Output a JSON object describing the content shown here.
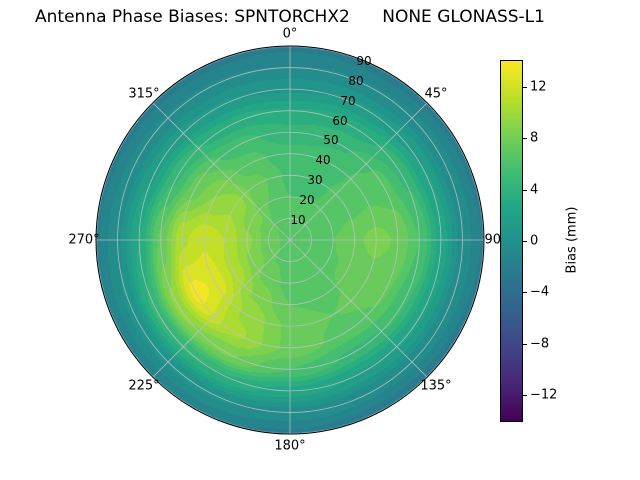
{
  "title": "Antenna Phase Biases: SPNTORCHX2      NONE GLONASS-L1",
  "polar": {
    "azimuth_labels": [
      "0°",
      "45°",
      "90°",
      "135°",
      "180°",
      "225°",
      "270°",
      "315°"
    ],
    "radial_labels": [
      "10",
      "20",
      "30",
      "40",
      "50",
      "60",
      "70",
      "80",
      "90"
    ]
  },
  "colorbar": {
    "label": "Bias (mm)",
    "tick_labels": [
      "12",
      "8",
      "4",
      "0",
      "−4",
      "−8",
      "−12"
    ]
  },
  "chart_data": {
    "type": "heatmap",
    "projection": "polar",
    "title": "Antenna Phase Biases: SPNTORCHX2      NONE GLONASS-L1",
    "colorbar_label": "Bias (mm)",
    "colorbar_ticks": [
      12,
      8,
      4,
      0,
      -4,
      -8,
      -12
    ],
    "colormap": "viridis",
    "colormap_stops": [
      {
        "t": 0.0,
        "c": "#440154"
      },
      {
        "t": 0.1,
        "c": "#482475"
      },
      {
        "t": 0.2,
        "c": "#414487"
      },
      {
        "t": 0.3,
        "c": "#355f8d"
      },
      {
        "t": 0.4,
        "c": "#2a788e"
      },
      {
        "t": 0.5,
        "c": "#21918c"
      },
      {
        "t": 0.6,
        "c": "#22a884"
      },
      {
        "t": 0.7,
        "c": "#44bf70"
      },
      {
        "t": 0.8,
        "c": "#7ad151"
      },
      {
        "t": 0.9,
        "c": "#bddf26"
      },
      {
        "t": 1.0,
        "c": "#fde725"
      }
    ],
    "vmin": -14,
    "vmax": 14,
    "grid": true,
    "azimuth_tick_deg": [
      0,
      45,
      90,
      135,
      180,
      225,
      270,
      315
    ],
    "radial_grid_deg": [
      10,
      20,
      30,
      40,
      50,
      60,
      70,
      80,
      90
    ],
    "radial_label_position_deg": 22.5,
    "azimuth_deg": [
      0,
      30,
      60,
      90,
      120,
      150,
      180,
      210,
      240,
      270,
      300,
      330
    ],
    "radius_deg": [
      0,
      10,
      20,
      30,
      40,
      50,
      60,
      70,
      80,
      90
    ],
    "values_mm": [
      [
        6.5,
        6.5,
        6.5,
        6.5,
        6.5,
        6.5,
        6.5,
        6.5,
        6.5,
        6.5,
        6.5,
        6.5
      ],
      [
        6.3,
        6.2,
        6.3,
        6.6,
        6.5,
        6.3,
        6.4,
        6.9,
        7.4,
        7.6,
        7.3,
        6.7
      ],
      [
        6.0,
        6.0,
        6.3,
        7.0,
        6.8,
        6.4,
        6.6,
        7.6,
        8.8,
        9.2,
        8.6,
        7.0
      ],
      [
        5.8,
        5.9,
        6.6,
        7.8,
        7.2,
        6.7,
        7.0,
        8.8,
        10.8,
        11.0,
        9.8,
        7.3
      ],
      [
        5.3,
        5.5,
        6.8,
        8.3,
        7.5,
        7.0,
        7.8,
        9.8,
        12.8,
        11.8,
        9.0,
        6.6
      ],
      [
        4.4,
        4.9,
        6.4,
        7.9,
        7.1,
        6.6,
        7.8,
        10.2,
        13.4,
        10.8,
        7.4,
        5.4
      ],
      [
        3.0,
        3.5,
        4.8,
        6.0,
        5.2,
        4.8,
        6.0,
        8.2,
        9.4,
        7.2,
        4.8,
        3.5
      ],
      [
        0.8,
        1.2,
        2.0,
        2.6,
        2.2,
        1.9,
        2.6,
        4.0,
        4.4,
        3.0,
        1.7,
        1.1
      ],
      [
        -1.0,
        -0.9,
        -0.6,
        -0.4,
        -0.6,
        -0.7,
        -0.4,
        0.2,
        0.3,
        -0.2,
        -0.7,
        -0.9
      ],
      [
        -2.2,
        -2.5,
        -2.3,
        -2.1,
        -2.4,
        -2.6,
        -2.2,
        -1.8,
        -1.8,
        -2.1,
        -2.3,
        -2.4
      ]
    ]
  }
}
